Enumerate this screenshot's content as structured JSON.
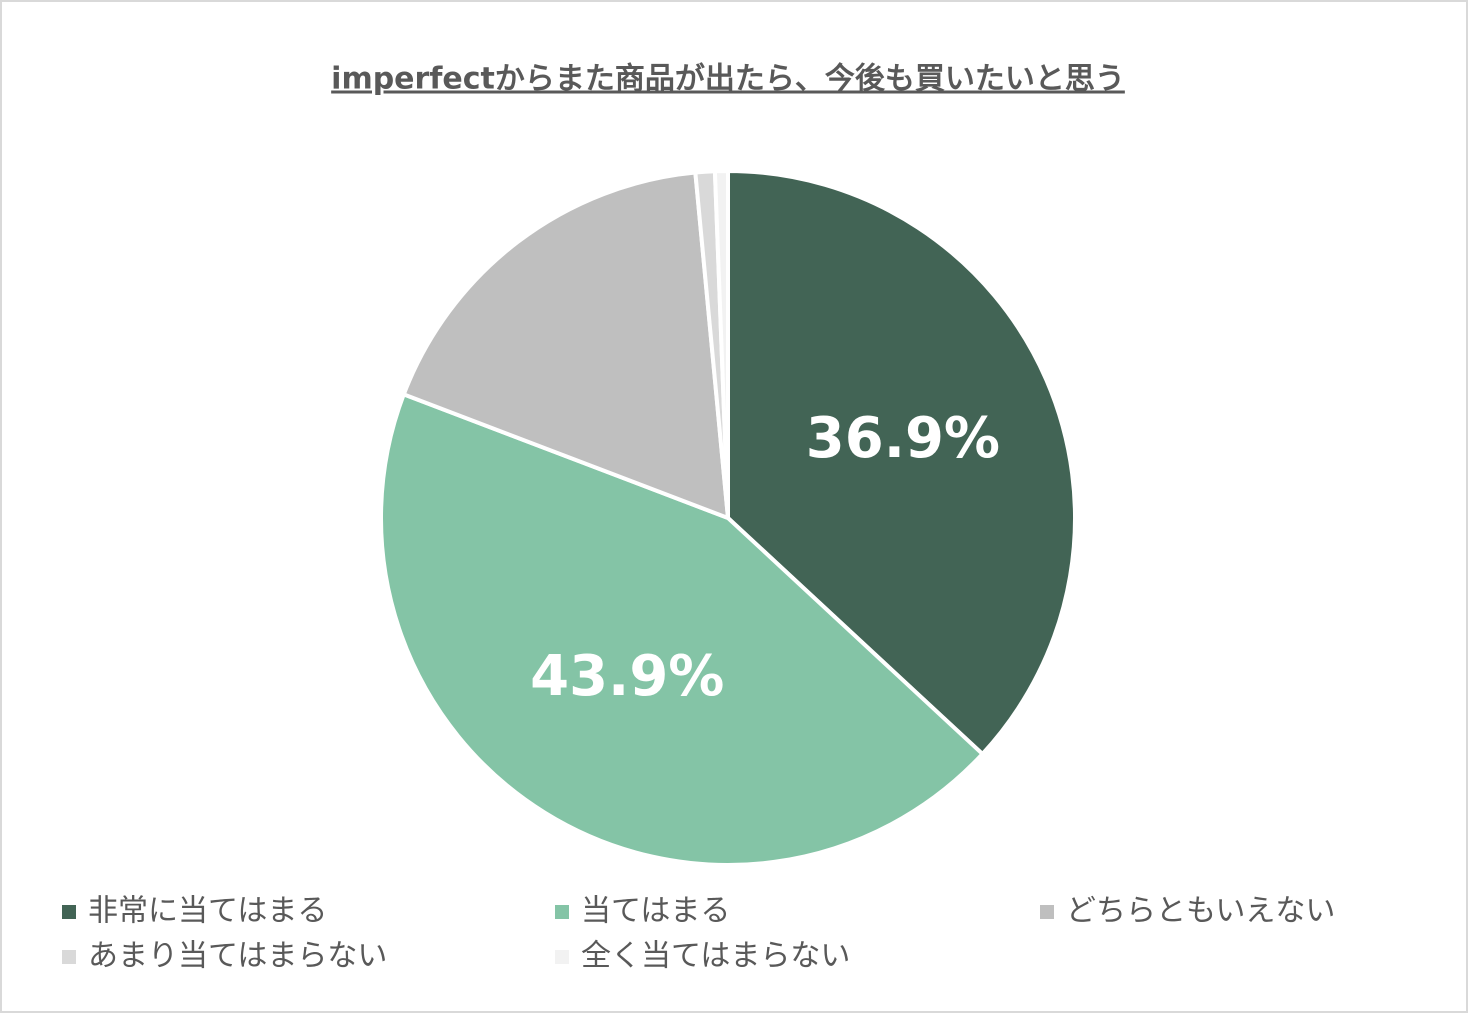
{
  "chart_data": {
    "type": "pie",
    "title": "imperfectからまた商品が出たら、今後も買いたいと思う",
    "categories": [
      "非常に当てはまる",
      "当てはまる",
      "どちらともいえない",
      "あまり当てはまらない",
      "全く当てはまらない"
    ],
    "values": [
      36.9,
      43.9,
      17.7,
      0.9,
      0.6
    ],
    "value_labels": [
      "36.9%",
      "43.9%",
      null,
      null,
      null
    ],
    "colors": [
      "#426455",
      "#84c4a6",
      "#bfbfbf",
      "#d9d9d9",
      "#f2f2f2"
    ],
    "legend": "bottom"
  }
}
